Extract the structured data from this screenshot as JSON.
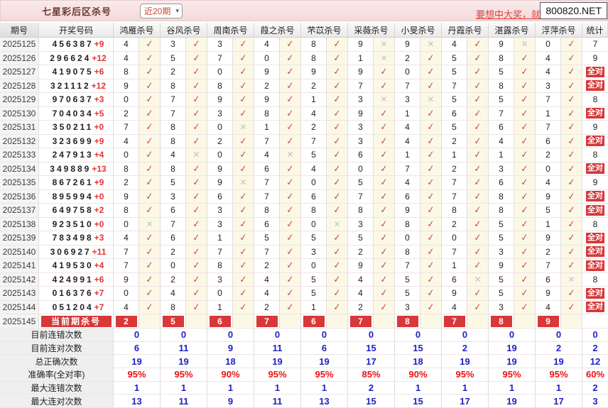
{
  "header_bar": {
    "title": "七星彩后区杀号",
    "range_selected": "近20期",
    "promo_text": "要想中大奖，就上800820.NET",
    "tooltip_text": "800820.NET"
  },
  "colors": {
    "accent_red": "#D8383A",
    "mark_ok": "#C4504E",
    "mark_miss": "#C3C3C3",
    "summary_blue": "#2020C8",
    "summary_red": "#EE1111",
    "topbar_pink": "#F3DADA"
  },
  "table": {
    "columns": {
      "issue": "期号",
      "draw": "开奖号码",
      "stat": "统计"
    },
    "experts": [
      "鸿雁杀号",
      "谷风杀号",
      "周南杀号",
      "葭之杀号",
      "芣苡杀号",
      "采薇杀号",
      "小旻杀号",
      "丹霞杀号",
      "湛露杀号",
      "浮萍杀号"
    ],
    "rows": [
      {
        "issue": "2025125",
        "front": "456387",
        "back": "+9",
        "kills": [
          4,
          3,
          3,
          4,
          8,
          9,
          9,
          4,
          9,
          0
        ],
        "marks": [
          1,
          1,
          1,
          1,
          1,
          0,
          0,
          1,
          0,
          1
        ],
        "stat": "7"
      },
      {
        "issue": "2025126",
        "front": "296624",
        "back": "+12",
        "kills": [
          4,
          5,
          7,
          0,
          8,
          1,
          2,
          5,
          8,
          4
        ],
        "marks": [
          1,
          1,
          1,
          1,
          1,
          0,
          1,
          1,
          1,
          1
        ],
        "stat": "9"
      },
      {
        "issue": "2025127",
        "front": "419075",
        "back": "+6",
        "kills": [
          8,
          2,
          0,
          9,
          9,
          9,
          0,
          5,
          5,
          4
        ],
        "marks": [
          1,
          1,
          1,
          1,
          1,
          1,
          1,
          1,
          1,
          1
        ],
        "stat": "全对"
      },
      {
        "issue": "2025128",
        "front": "321112",
        "back": "+12",
        "kills": [
          9,
          8,
          8,
          2,
          2,
          7,
          7,
          7,
          8,
          3
        ],
        "marks": [
          1,
          1,
          1,
          1,
          1,
          1,
          1,
          1,
          1,
          1
        ],
        "stat": "全对"
      },
      {
        "issue": "2025129",
        "front": "970637",
        "back": "+3",
        "kills": [
          0,
          7,
          9,
          9,
          1,
          3,
          3,
          5,
          5,
          7
        ],
        "marks": [
          1,
          1,
          1,
          1,
          1,
          0,
          0,
          1,
          1,
          1
        ],
        "stat": "8"
      },
      {
        "issue": "2025130",
        "front": "704034",
        "back": "+5",
        "kills": [
          2,
          7,
          3,
          8,
          4,
          9,
          1,
          6,
          7,
          1
        ],
        "marks": [
          1,
          1,
          1,
          1,
          1,
          1,
          1,
          1,
          1,
          1
        ],
        "stat": "全对"
      },
      {
        "issue": "2025131",
        "front": "350211",
        "back": "+0",
        "kills": [
          7,
          8,
          0,
          1,
          2,
          3,
          4,
          5,
          6,
          7
        ],
        "marks": [
          1,
          1,
          0,
          1,
          1,
          1,
          1,
          1,
          1,
          1
        ],
        "stat": "9"
      },
      {
        "issue": "2025132",
        "front": "323699",
        "back": "+9",
        "kills": [
          4,
          8,
          2,
          7,
          7,
          3,
          4,
          2,
          4,
          6
        ],
        "marks": [
          1,
          1,
          1,
          1,
          1,
          1,
          1,
          1,
          1,
          1
        ],
        "stat": "全对"
      },
      {
        "issue": "2025133",
        "front": "247913",
        "back": "+4",
        "kills": [
          0,
          4,
          0,
          4,
          5,
          6,
          1,
          1,
          1,
          2
        ],
        "marks": [
          1,
          0,
          1,
          0,
          1,
          1,
          1,
          1,
          1,
          1
        ],
        "stat": "8"
      },
      {
        "issue": "2025134",
        "front": "349889",
        "back": "+13",
        "kills": [
          8,
          8,
          9,
          6,
          4,
          0,
          7,
          2,
          3,
          0
        ],
        "marks": [
          1,
          1,
          1,
          1,
          1,
          1,
          1,
          1,
          1,
          1
        ],
        "stat": "全对"
      },
      {
        "issue": "2025135",
        "front": "867261",
        "back": "+9",
        "kills": [
          2,
          5,
          9,
          7,
          0,
          5,
          4,
          7,
          6,
          4
        ],
        "marks": [
          1,
          1,
          0,
          1,
          1,
          1,
          1,
          1,
          1,
          1
        ],
        "stat": "9"
      },
      {
        "issue": "2025136",
        "front": "895994",
        "back": "+0",
        "kills": [
          9,
          3,
          6,
          7,
          6,
          7,
          6,
          7,
          8,
          9
        ],
        "marks": [
          1,
          1,
          1,
          1,
          1,
          1,
          1,
          1,
          1,
          1
        ],
        "stat": "全对"
      },
      {
        "issue": "2025137",
        "front": "649758",
        "back": "+2",
        "kills": [
          8,
          6,
          3,
          8,
          8,
          8,
          9,
          8,
          8,
          5
        ],
        "marks": [
          1,
          1,
          1,
          1,
          1,
          1,
          1,
          1,
          1,
          1
        ],
        "stat": "全对"
      },
      {
        "issue": "2025138",
        "front": "923510",
        "back": "+0",
        "kills": [
          0,
          7,
          3,
          6,
          0,
          3,
          8,
          2,
          5,
          1
        ],
        "marks": [
          0,
          1,
          1,
          1,
          0,
          1,
          1,
          1,
          1,
          1
        ],
        "stat": "8"
      },
      {
        "issue": "2025139",
        "front": "783498",
        "back": "+3",
        "kills": [
          4,
          6,
          1,
          5,
          5,
          5,
          0,
          0,
          5,
          9
        ],
        "marks": [
          1,
          1,
          1,
          1,
          1,
          1,
          1,
          1,
          1,
          1
        ],
        "stat": "全对"
      },
      {
        "issue": "2025140",
        "front": "306927",
        "back": "+11",
        "kills": [
          7,
          2,
          7,
          7,
          3,
          2,
          8,
          7,
          3,
          2
        ],
        "marks": [
          1,
          1,
          1,
          1,
          1,
          1,
          1,
          1,
          1,
          1
        ],
        "stat": "全对"
      },
      {
        "issue": "2025141",
        "front": "419530",
        "back": "+4",
        "kills": [
          7,
          0,
          8,
          2,
          0,
          9,
          7,
          1,
          9,
          7
        ],
        "marks": [
          1,
          1,
          1,
          1,
          1,
          1,
          1,
          1,
          1,
          1
        ],
        "stat": "全对"
      },
      {
        "issue": "2025142",
        "front": "424991",
        "back": "+6",
        "kills": [
          9,
          2,
          3,
          4,
          5,
          4,
          5,
          6,
          5,
          6
        ],
        "marks": [
          1,
          1,
          1,
          1,
          1,
          1,
          1,
          0,
          1,
          0
        ],
        "stat": "8"
      },
      {
        "issue": "2025143",
        "front": "016376",
        "back": "+7",
        "kills": [
          0,
          4,
          0,
          4,
          5,
          4,
          5,
          9,
          5,
          9
        ],
        "marks": [
          1,
          1,
          1,
          1,
          1,
          1,
          1,
          1,
          1,
          1
        ],
        "stat": "全对"
      },
      {
        "issue": "2025144",
        "front": "051204",
        "back": "+7",
        "kills": [
          4,
          8,
          1,
          2,
          1,
          2,
          3,
          4,
          3,
          4
        ],
        "marks": [
          1,
          1,
          1,
          1,
          1,
          1,
          1,
          1,
          1,
          1
        ],
        "stat": "全对"
      }
    ],
    "current_row": {
      "issue": "2025145",
      "label": "当前期杀号",
      "kills": [
        2,
        5,
        6,
        7,
        6,
        7,
        8,
        7,
        8,
        9
      ]
    },
    "summary_rows": [
      {
        "label": "目前连错次数",
        "style": "blue",
        "values": [
          "0",
          "0",
          "0",
          "0",
          "0",
          "0",
          "0",
          "0",
          "0",
          "0"
        ],
        "stat": "0"
      },
      {
        "label": "目前连对次数",
        "style": "blue",
        "values": [
          "6",
          "11",
          "9",
          "11",
          "6",
          "15",
          "15",
          "2",
          "19",
          "2"
        ],
        "stat": "2"
      },
      {
        "label": "总正确次数",
        "style": "blue",
        "values": [
          "19",
          "19",
          "18",
          "19",
          "19",
          "17",
          "18",
          "19",
          "19",
          "19"
        ],
        "stat": "12"
      },
      {
        "label": "准确率(全对率)",
        "style": "red",
        "values": [
          "95%",
          "95%",
          "90%",
          "95%",
          "95%",
          "85%",
          "90%",
          "95%",
          "95%",
          "95%"
        ],
        "stat": "60%"
      },
      {
        "label": "最大连错次数",
        "style": "blue",
        "values": [
          "1",
          "1",
          "1",
          "1",
          "1",
          "2",
          "1",
          "1",
          "1",
          "1"
        ],
        "stat": "2"
      },
      {
        "label": "最大连对次数",
        "style": "blue",
        "values": [
          "13",
          "11",
          "9",
          "11",
          "13",
          "15",
          "15",
          "17",
          "19",
          "17"
        ],
        "stat": "3"
      }
    ],
    "mark_ok_glyph": "✓",
    "mark_miss_glyph": "✕"
  }
}
